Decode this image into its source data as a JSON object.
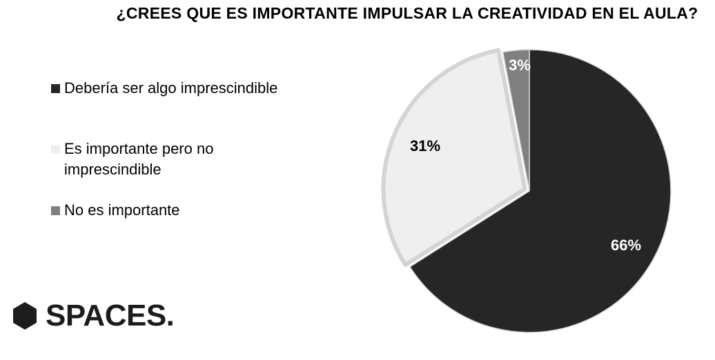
{
  "chart_data": {
    "type": "pie",
    "title": "¿CREES QUE ES IMPORTANTE IMPULSAR LA CREATIVIDAD EN EL AULA?",
    "categories": [
      "Debería ser algo imprescindible",
      "Es importante pero no imprescindible",
      "No es importante"
    ],
    "values": [
      66,
      31,
      3
    ],
    "data_labels": [
      "66%",
      "31%",
      "3%"
    ],
    "colors": [
      "#262626",
      "#efefef",
      "#808080"
    ],
    "label_colors": [
      "#ffffff",
      "#000000",
      "#ffffff"
    ],
    "legend_position": "left",
    "start_angle": "12 o'clock, clockwise"
  },
  "logo": {
    "text": "SPACES.",
    "icon": "hexagon-icon",
    "color": "#1c1c1c"
  }
}
